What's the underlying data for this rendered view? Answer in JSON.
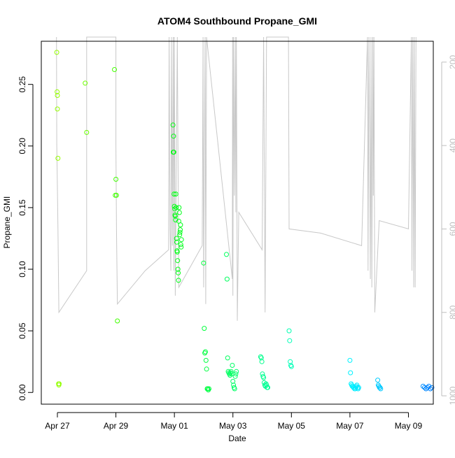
{
  "chart_data": {
    "type": "scatter",
    "title": "ATOM4 Southbound Propane_GMI",
    "xlabel": "Date",
    "ylabel": "Propane_GMI",
    "x_unit": "days since Apr 27",
    "xlim": [
      -0.55,
      12.85
    ],
    "ylim": [
      -0.0095,
      0.285
    ],
    "x_ticks": [
      {
        "value": 0,
        "label": "Apr 27"
      },
      {
        "value": 2,
        "label": "Apr 29"
      },
      {
        "value": 4,
        "label": "May 01"
      },
      {
        "value": 6,
        "label": "May 03"
      },
      {
        "value": 8,
        "label": "May 05"
      },
      {
        "value": 10,
        "label": "May 07"
      },
      {
        "value": 12,
        "label": "May 09"
      }
    ],
    "y_ticks": [
      {
        "value": 0.0,
        "label": "0.00"
      },
      {
        "value": 0.05,
        "label": "0.05"
      },
      {
        "value": 0.1,
        "label": "0.10"
      },
      {
        "value": 0.15,
        "label": "0.15"
      },
      {
        "value": 0.2,
        "label": "0.20"
      },
      {
        "value": 0.25,
        "label": "0.25"
      }
    ],
    "secondary_axis": {
      "label": "",
      "color": "#bebebe",
      "ylim": [
        1020,
        150
      ],
      "ticks": [
        {
          "value": 200,
          "label": "200"
        },
        {
          "value": 400,
          "label": "400"
        },
        {
          "value": 600,
          "label": "600"
        },
        {
          "value": 800,
          "label": "800"
        },
        {
          "value": 1000,
          "label": "1000"
        }
      ],
      "line_color": "#c8c8c8",
      "line": [
        [
          -0.03,
          140
        ],
        [
          -0.02,
          400
        ],
        [
          0.0,
          500
        ],
        [
          0.02,
          600
        ],
        [
          0.05,
          800
        ],
        [
          1.0,
          700
        ],
        [
          1.0,
          330
        ],
        [
          1.0,
          140
        ],
        [
          2.0,
          140
        ],
        [
          2.0,
          400
        ],
        [
          2.02,
          600
        ],
        [
          2.05,
          780
        ],
        [
          3.0,
          700
        ],
        [
          3.8,
          650
        ],
        [
          3.82,
          140
        ],
        [
          3.85,
          600
        ],
        [
          3.88,
          700
        ],
        [
          3.9,
          140
        ],
        [
          3.93,
          640
        ],
        [
          3.96,
          140
        ],
        [
          3.98,
          700
        ],
        [
          4.0,
          140
        ],
        [
          4.03,
          760
        ],
        [
          4.1,
          140
        ],
        [
          4.15,
          740
        ],
        [
          4.95,
          640
        ],
        [
          4.98,
          140
        ],
        [
          5.0,
          740
        ],
        [
          5.05,
          140
        ],
        [
          5.07,
          780
        ],
        [
          5.1,
          140
        ],
        [
          5.98,
          720
        ],
        [
          5.99,
          140
        ],
        [
          6.0,
          760
        ],
        [
          6.02,
          140
        ],
        [
          6.05,
          520
        ],
        [
          6.08,
          140
        ],
        [
          6.1,
          560
        ],
        [
          6.12,
          140
        ],
        [
          6.15,
          820
        ],
        [
          6.2,
          560
        ],
        [
          7.0,
          650
        ],
        [
          7.05,
          140
        ],
        [
          7.1,
          800
        ],
        [
          7.15,
          140
        ],
        [
          7.9,
          140
        ],
        [
          7.92,
          600
        ],
        [
          9.0,
          610
        ],
        [
          10.4,
          640
        ],
        [
          10.6,
          140
        ],
        [
          10.62,
          700
        ],
        [
          10.65,
          140
        ],
        [
          10.7,
          720
        ],
        [
          10.72,
          140
        ],
        [
          10.75,
          740
        ],
        [
          10.78,
          140
        ],
        [
          10.8,
          520
        ],
        [
          10.82,
          140
        ],
        [
          10.85,
          800
        ],
        [
          11.0,
          580
        ],
        [
          12.0,
          600
        ],
        [
          12.1,
          140
        ],
        [
          12.12,
          700
        ],
        [
          12.15,
          140
        ],
        [
          12.18,
          740
        ],
        [
          12.2,
          140
        ],
        [
          12.23,
          740
        ],
        [
          12.26,
          140
        ]
      ]
    },
    "series": [
      {
        "name": "Propane_GMI",
        "marker": "open-circle",
        "color_scale": "time (yellow-green to blue)",
        "x": [
          -0.02,
          -0.01,
          0.0,
          0.0,
          0.02,
          0.04,
          0.05,
          0.06,
          0.95,
          1.0,
          1.95,
          2.0,
          1.98,
          2.02,
          2.05,
          3.95,
          3.96,
          3.97,
          3.98,
          3.99,
          4.0,
          4.01,
          4.02,
          4.03,
          4.04,
          4.05,
          4.06,
          4.07,
          4.08,
          4.09,
          4.1,
          4.11,
          4.12,
          4.13,
          4.14,
          4.15,
          4.16,
          4.17,
          4.18,
          4.19,
          4.2,
          4.21,
          4.22,
          4.23,
          4.24,
          5.0,
          5.02,
          5.04,
          5.06,
          5.08,
          5.1,
          5.12,
          5.14,
          5.16,
          5.18,
          5.78,
          5.8,
          5.82,
          5.84,
          5.86,
          5.88,
          5.9,
          5.92,
          5.94,
          5.96,
          5.98,
          6.0,
          6.02,
          6.04,
          6.06,
          6.08,
          6.1,
          6.12,
          6.95,
          6.97,
          6.99,
          7.01,
          7.03,
          7.05,
          7.07,
          7.09,
          7.11,
          7.13,
          7.15,
          7.17,
          7.19,
          7.92,
          7.94,
          7.96,
          7.98,
          8.0,
          10.0,
          10.02,
          10.04,
          10.06,
          10.08,
          10.1,
          10.12,
          10.14,
          10.16,
          10.18,
          10.2,
          10.22,
          10.24,
          10.26,
          10.28,
          10.3,
          10.95,
          10.97,
          10.99,
          11.01,
          11.03,
          11.05,
          12.5,
          12.55,
          12.6,
          12.65,
          12.7,
          12.75,
          12.8
        ],
        "y": [
          0.276,
          0.244,
          0.241,
          0.23,
          0.19,
          0.007,
          0.006,
          0.007,
          0.251,
          0.211,
          0.262,
          0.173,
          0.16,
          0.16,
          0.058,
          0.217,
          0.195,
          0.208,
          0.195,
          0.161,
          0.151,
          0.149,
          0.144,
          0.143,
          0.14,
          0.161,
          0.15,
          0.125,
          0.122,
          0.115,
          0.114,
          0.107,
          0.1,
          0.097,
          0.091,
          0.139,
          0.15,
          0.146,
          0.128,
          0.13,
          0.132,
          0.136,
          0.12,
          0.118,
          0.124,
          0.105,
          0.052,
          0.032,
          0.033,
          0.026,
          0.019,
          0.003,
          0.003,
          0.002,
          0.003,
          0.112,
          0.092,
          0.028,
          0.017,
          0.016,
          0.015,
          0.014,
          0.016,
          0.017,
          0.015,
          0.022,
          0.009,
          0.006,
          0.004,
          0.003,
          0.013,
          0.015,
          0.017,
          0.029,
          0.028,
          0.025,
          0.015,
          0.013,
          0.012,
          0.008,
          0.006,
          0.005,
          0.007,
          0.006,
          0.004,
          0.004,
          0.05,
          0.042,
          0.025,
          0.022,
          0.021,
          0.026,
          0.016,
          0.007,
          0.006,
          0.005,
          0.005,
          0.004,
          0.004,
          0.003,
          0.003,
          0.004,
          0.005,
          0.006,
          0.004,
          0.003,
          0.004,
          0.01,
          0.006,
          0.005,
          0.004,
          0.004,
          0.003,
          0.005,
          0.004,
          0.003,
          0.004,
          0.005,
          0.003,
          0.004
        ]
      }
    ]
  }
}
